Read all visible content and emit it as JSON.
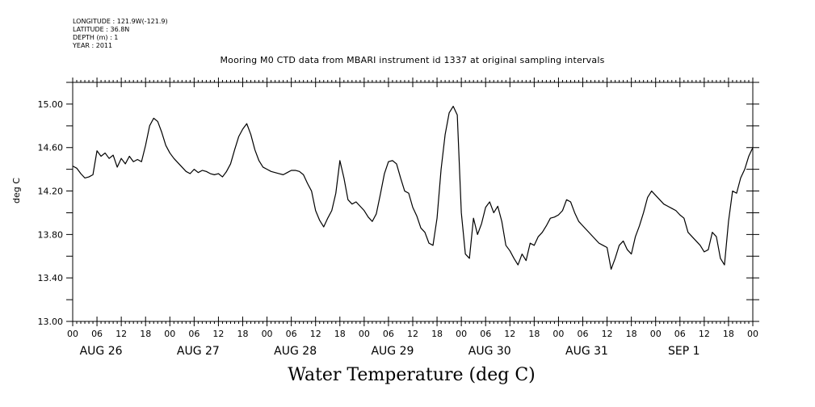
{
  "meta": {
    "longitude": "LONGITUDE : 121.9W(-121.9)",
    "latitude": "LATITUDE : 36.8N",
    "depth": "DEPTH (m) : 1",
    "year": "YEAR : 2011"
  },
  "chart_data": {
    "type": "line",
    "title": "Water Temperature (deg C)",
    "subtitle": "Mooring M0 CTD data from MBARI instrument id 1337 at original sampling intervals",
    "xlabel": "",
    "ylabel": "deg C",
    "ylim": [
      13.0,
      15.2
    ],
    "yticks": [
      13.0,
      13.4,
      13.8,
      14.2,
      14.6,
      15.0
    ],
    "ytick_labels": [
      "13.00",
      "13.40",
      "13.80",
      "14.20",
      "14.60",
      "15.00"
    ],
    "xlim_hours": [
      0,
      168
    ],
    "hour_tick_labels": [
      "00",
      "06",
      "12",
      "18",
      "00",
      "06",
      "12",
      "18",
      "00",
      "06",
      "12",
      "18",
      "00",
      "06",
      "12",
      "18",
      "00",
      "06",
      "12",
      "18",
      "00",
      "06",
      "12",
      "18",
      "00",
      "06",
      "12",
      "18",
      "00"
    ],
    "day_labels": [
      "AUG 26",
      "AUG 27",
      "AUG 28",
      "AUG 29",
      "AUG 30",
      "AUG 31",
      "SEP  1"
    ],
    "grid": false,
    "series": [
      {
        "values": [
          [
            0,
            14.43
          ],
          [
            1,
            14.41
          ],
          [
            2,
            14.36
          ],
          [
            3,
            14.32
          ],
          [
            4,
            14.33
          ],
          [
            5,
            14.35
          ],
          [
            6,
            14.57
          ],
          [
            7,
            14.52
          ],
          [
            8,
            14.55
          ],
          [
            9,
            14.5
          ],
          [
            10,
            14.53
          ],
          [
            11,
            14.42
          ],
          [
            12,
            14.5
          ],
          [
            13,
            14.45
          ],
          [
            14,
            14.52
          ],
          [
            15,
            14.47
          ],
          [
            16,
            14.49
          ],
          [
            17,
            14.47
          ],
          [
            18,
            14.62
          ],
          [
            19,
            14.8
          ],
          [
            20,
            14.87
          ],
          [
            21,
            14.84
          ],
          [
            22,
            14.74
          ],
          [
            23,
            14.62
          ],
          [
            24,
            14.55
          ],
          [
            25,
            14.5
          ],
          [
            26,
            14.46
          ],
          [
            27,
            14.42
          ],
          [
            28,
            14.38
          ],
          [
            29,
            14.36
          ],
          [
            30,
            14.4
          ],
          [
            31,
            14.37
          ],
          [
            32,
            14.39
          ],
          [
            33,
            14.38
          ],
          [
            34,
            14.36
          ],
          [
            35,
            14.35
          ],
          [
            36,
            14.36
          ],
          [
            37,
            14.33
          ],
          [
            38,
            14.38
          ],
          [
            39,
            14.45
          ],
          [
            40,
            14.58
          ],
          [
            41,
            14.7
          ],
          [
            42,
            14.77
          ],
          [
            43,
            14.82
          ],
          [
            44,
            14.72
          ],
          [
            45,
            14.58
          ],
          [
            46,
            14.48
          ],
          [
            47,
            14.42
          ],
          [
            48,
            14.4
          ],
          [
            49,
            14.38
          ],
          [
            50,
            14.37
          ],
          [
            51,
            14.36
          ],
          [
            52,
            14.35
          ],
          [
            53,
            14.37
          ],
          [
            54,
            14.39
          ],
          [
            55,
            14.39
          ],
          [
            56,
            14.38
          ],
          [
            57,
            14.35
          ],
          [
            58,
            14.27
          ],
          [
            59,
            14.2
          ],
          [
            60,
            14.02
          ],
          [
            61,
            13.93
          ],
          [
            62,
            13.87
          ],
          [
            63,
            13.95
          ],
          [
            64,
            14.02
          ],
          [
            65,
            14.18
          ],
          [
            66,
            14.48
          ],
          [
            67,
            14.32
          ],
          [
            68,
            14.12
          ],
          [
            69,
            14.08
          ],
          [
            70,
            14.1
          ],
          [
            71,
            14.06
          ],
          [
            72,
            14.02
          ],
          [
            73,
            13.96
          ],
          [
            74,
            13.92
          ],
          [
            75,
            13.99
          ],
          [
            76,
            14.17
          ],
          [
            77,
            14.36
          ],
          [
            78,
            14.47
          ],
          [
            79,
            14.48
          ],
          [
            80,
            14.45
          ],
          [
            81,
            14.32
          ],
          [
            82,
            14.2
          ],
          [
            83,
            14.18
          ],
          [
            84,
            14.05
          ],
          [
            85,
            13.97
          ],
          [
            86,
            13.86
          ],
          [
            87,
            13.82
          ],
          [
            88,
            13.72
          ],
          [
            89,
            13.7
          ],
          [
            90,
            13.95
          ],
          [
            91,
            14.4
          ],
          [
            92,
            14.72
          ],
          [
            93,
            14.92
          ],
          [
            94,
            14.98
          ],
          [
            95,
            14.9
          ],
          [
            96,
            14.0
          ],
          [
            97,
            13.62
          ],
          [
            98,
            13.58
          ],
          [
            99,
            13.95
          ],
          [
            100,
            13.8
          ],
          [
            101,
            13.9
          ],
          [
            102,
            14.05
          ],
          [
            103,
            14.1
          ],
          [
            104,
            14.0
          ],
          [
            105,
            14.06
          ],
          [
            106,
            13.92
          ],
          [
            107,
            13.7
          ],
          [
            108,
            13.65
          ],
          [
            109,
            13.58
          ],
          [
            110,
            13.52
          ],
          [
            111,
            13.62
          ],
          [
            112,
            13.56
          ],
          [
            113,
            13.72
          ],
          [
            114,
            13.7
          ],
          [
            115,
            13.78
          ],
          [
            116,
            13.82
          ],
          [
            117,
            13.88
          ],
          [
            118,
            13.95
          ],
          [
            119,
            13.96
          ],
          [
            120,
            13.98
          ],
          [
            121,
            14.02
          ],
          [
            122,
            14.12
          ],
          [
            123,
            14.1
          ],
          [
            124,
            14.0
          ],
          [
            125,
            13.92
          ],
          [
            126,
            13.88
          ],
          [
            127,
            13.84
          ],
          [
            128,
            13.8
          ],
          [
            129,
            13.76
          ],
          [
            130,
            13.72
          ],
          [
            131,
            13.7
          ],
          [
            132,
            13.68
          ],
          [
            133,
            13.48
          ],
          [
            134,
            13.58
          ],
          [
            135,
            13.7
          ],
          [
            136,
            13.74
          ],
          [
            137,
            13.66
          ],
          [
            138,
            13.62
          ],
          [
            139,
            13.78
          ],
          [
            140,
            13.88
          ],
          [
            141,
            14.0
          ],
          [
            142,
            14.14
          ],
          [
            143,
            14.2
          ],
          [
            144,
            14.16
          ],
          [
            145,
            14.12
          ],
          [
            146,
            14.08
          ],
          [
            147,
            14.06
          ],
          [
            148,
            14.04
          ],
          [
            149,
            14.02
          ],
          [
            150,
            13.98
          ],
          [
            151,
            13.95
          ],
          [
            152,
            13.82
          ],
          [
            153,
            13.78
          ],
          [
            154,
            13.74
          ],
          [
            155,
            13.7
          ],
          [
            156,
            13.64
          ],
          [
            157,
            13.66
          ],
          [
            158,
            13.82
          ],
          [
            159,
            13.78
          ],
          [
            160,
            13.58
          ],
          [
            161,
            13.52
          ],
          [
            162,
            13.92
          ],
          [
            163,
            14.2
          ],
          [
            164,
            14.18
          ],
          [
            165,
            14.32
          ],
          [
            166,
            14.4
          ],
          [
            167,
            14.52
          ],
          [
            168,
            14.6
          ]
        ]
      }
    ]
  }
}
